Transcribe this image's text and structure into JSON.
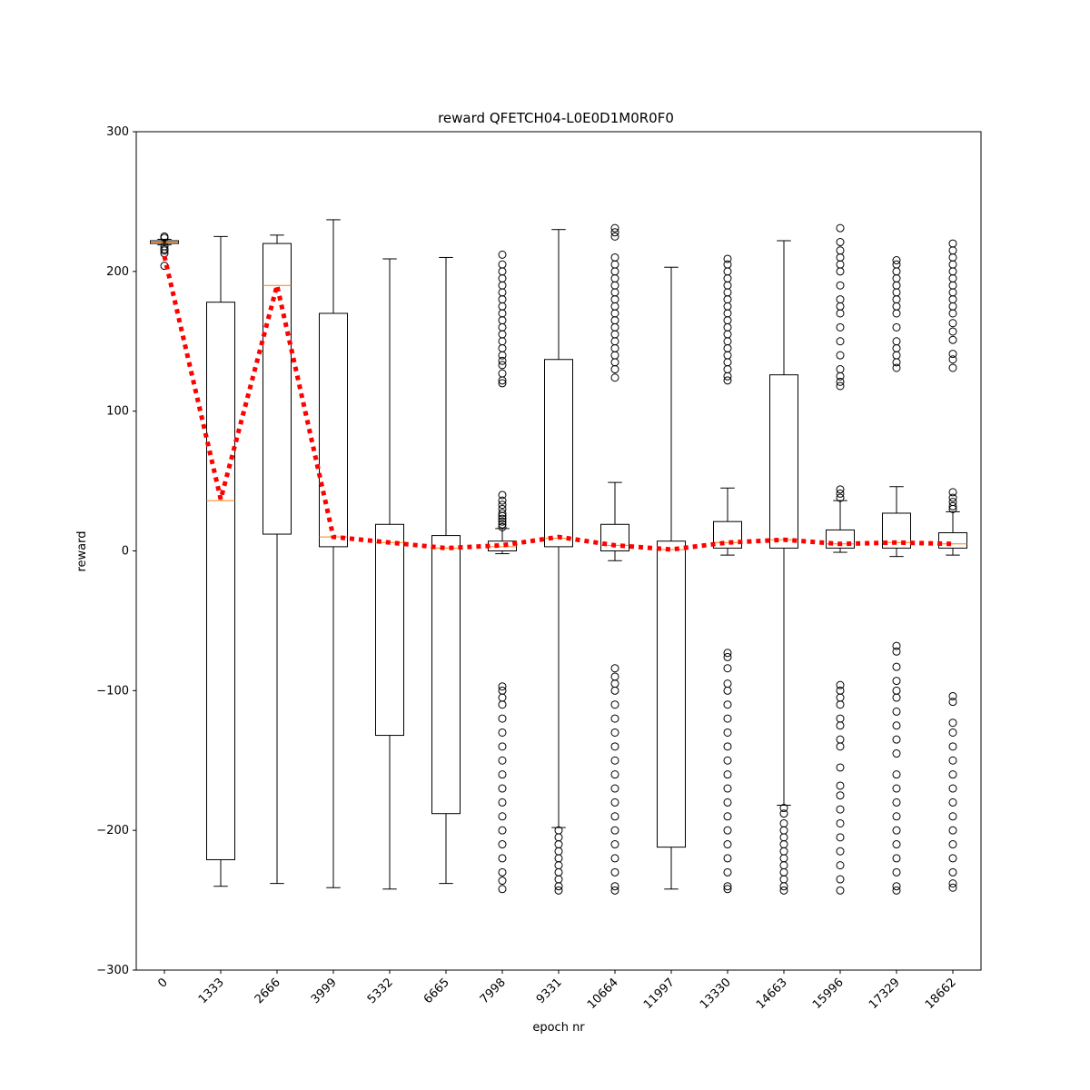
{
  "chart_data": {
    "type": "box",
    "title": "reward QFETCH04-L0E0D1M0R0F0",
    "xlabel": "epoch nr",
    "ylabel": "reward",
    "categories": [
      "0",
      "1333",
      "2666",
      "3999",
      "5332",
      "6665",
      "7998",
      "9331",
      "10664",
      "11997",
      "13330",
      "14663",
      "15996",
      "17329",
      "18662"
    ],
    "box_color": "#000000",
    "median_color": "#ff7f0e",
    "boxes": [
      {
        "whislo": 219,
        "q1": 220,
        "med": 221,
        "q3": 222,
        "whishi": 223,
        "fliers": [
          225,
          224,
          218,
          216,
          215,
          213,
          204
        ]
      },
      {
        "whislo": -240,
        "q1": -221,
        "med": 36,
        "q3": 178,
        "whishi": 225,
        "fliers": []
      },
      {
        "whislo": -238,
        "q1": 12,
        "med": 190,
        "q3": 220,
        "whishi": 226,
        "fliers": []
      },
      {
        "whislo": -241,
        "q1": 3,
        "med": 10,
        "q3": 170,
        "whishi": 237,
        "fliers": []
      },
      {
        "whislo": -242,
        "q1": -132,
        "med": 6,
        "q3": 19,
        "whishi": 209,
        "fliers": []
      },
      {
        "whislo": -238,
        "q1": -188,
        "med": 2,
        "q3": 11,
        "whishi": 210,
        "fliers": []
      },
      {
        "whislo": -2,
        "q1": 0,
        "med": 3,
        "q3": 7,
        "whishi": 16,
        "fliers": [
          17,
          19,
          21,
          23,
          25,
          27,
          30,
          33,
          36,
          40,
          120,
          122,
          127,
          133,
          136,
          140,
          145,
          150,
          155,
          160,
          165,
          170,
          175,
          180,
          185,
          190,
          195,
          200,
          205,
          212,
          -97,
          -100,
          -105,
          -110,
          -120,
          -130,
          -140,
          -150,
          -160,
          -170,
          -180,
          -190,
          -200,
          -210,
          -220,
          -230,
          -236,
          -242
        ]
      },
      {
        "whislo": -198,
        "q1": 3,
        "med": 9,
        "q3": 137,
        "whishi": 230,
        "fliers": [
          -200,
          -205,
          -210,
          -215,
          -220,
          -225,
          -230,
          -235,
          -240,
          -243
        ]
      },
      {
        "whislo": -7,
        "q1": 0,
        "med": 4,
        "q3": 19,
        "whishi": 49,
        "fliers": [
          124,
          130,
          135,
          140,
          145,
          150,
          155,
          160,
          165,
          170,
          175,
          180,
          185,
          190,
          195,
          200,
          205,
          210,
          225,
          228,
          231,
          -84,
          -90,
          -95,
          -100,
          -110,
          -120,
          -130,
          -140,
          -150,
          -160,
          -170,
          -180,
          -190,
          -200,
          -210,
          -220,
          -230,
          -240,
          -243
        ]
      },
      {
        "whislo": -242,
        "q1": -212,
        "med": 1,
        "q3": 7,
        "whishi": 203,
        "fliers": []
      },
      {
        "whislo": -3,
        "q1": 2,
        "med": 6,
        "q3": 21,
        "whishi": 45,
        "fliers": [
          122,
          125,
          130,
          135,
          140,
          145,
          150,
          155,
          160,
          165,
          170,
          175,
          180,
          185,
          190,
          195,
          200,
          205,
          209,
          -73,
          -76,
          -84,
          -95,
          -100,
          -110,
          -120,
          -130,
          -140,
          -150,
          -160,
          -170,
          -180,
          -190,
          -200,
          -210,
          -220,
          -230,
          -240,
          -242
        ]
      },
      {
        "whislo": -182,
        "q1": 2,
        "med": 8,
        "q3": 126,
        "whishi": 222,
        "fliers": [
          -184,
          -188,
          -195,
          -200,
          -205,
          -210,
          -215,
          -220,
          -225,
          -230,
          -235,
          -240,
          -243
        ]
      },
      {
        "whislo": -1,
        "q1": 2,
        "med": 5,
        "q3": 15,
        "whishi": 36,
        "fliers": [
          38,
          41,
          44,
          118,
          121,
          125,
          130,
          140,
          150,
          160,
          170,
          175,
          180,
          190,
          200,
          205,
          210,
          215,
          221,
          231,
          -96,
          -100,
          -105,
          -110,
          -120,
          -125,
          -135,
          -140,
          -155,
          -168,
          -175,
          -185,
          -195,
          -205,
          -215,
          -225,
          -235,
          -243
        ]
      },
      {
        "whislo": -4,
        "q1": 2,
        "med": 6,
        "q3": 27,
        "whishi": 46,
        "fliers": [
          131,
          135,
          140,
          145,
          150,
          160,
          170,
          175,
          180,
          185,
          190,
          195,
          200,
          205,
          208,
          -68,
          -72,
          -83,
          -93,
          -100,
          -105,
          -115,
          -125,
          -135,
          -145,
          -160,
          -170,
          -180,
          -190,
          -200,
          -210,
          -220,
          -230,
          -240,
          -243
        ]
      },
      {
        "whislo": -3,
        "q1": 2,
        "med": 5,
        "q3": 13,
        "whishi": 28,
        "fliers": [
          30,
          32,
          35,
          38,
          42,
          131,
          137,
          141,
          151,
          157,
          163,
          170,
          175,
          180,
          185,
          190,
          195,
          200,
          205,
          210,
          215,
          220,
          -104,
          -108,
          -123,
          -130,
          -140,
          -150,
          -160,
          -170,
          -180,
          -190,
          -200,
          -210,
          -220,
          -230,
          -238,
          -241
        ]
      }
    ],
    "series": [
      {
        "color": "#ff0000",
        "values": [
          211,
          37,
          190,
          10,
          6,
          2,
          4,
          10,
          4,
          1,
          6,
          8,
          5,
          6,
          5
        ]
      }
    ],
    "ylim": [
      -300,
      300
    ],
    "yticks": [
      {
        "value": -300,
        "label": "−300"
      },
      {
        "value": -200,
        "label": "−200"
      },
      {
        "value": -100,
        "label": "−100"
      },
      0,
      100,
      200,
      300
    ]
  }
}
